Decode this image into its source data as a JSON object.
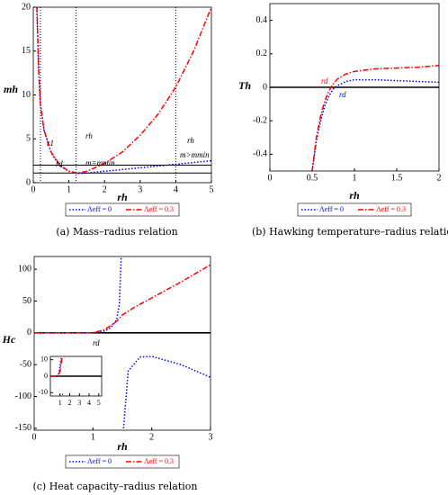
{
  "chart_data": [
    {
      "type": "line",
      "caption": "(a)   Mass–radius relation",
      "xlabel": "rh",
      "ylabel": "mh",
      "xlim": [
        0,
        5
      ],
      "ylim": [
        0,
        20
      ],
      "xticks": [
        0,
        1,
        2,
        3,
        4,
        5
      ],
      "yticks": [
        0,
        5,
        10,
        15,
        20
      ],
      "legend": "below",
      "series": [
        {
          "name": "Λeff = 0",
          "color": "#0000ff",
          "dash": "dotted",
          "x": [
            0.1,
            0.15,
            0.2,
            0.3,
            0.5,
            0.75,
            1,
            1.25,
            1.5,
            2,
            2.5,
            3,
            3.5,
            4,
            4.5,
            5
          ],
          "values": [
            20,
            13,
            9,
            6,
            3.4,
            1.9,
            1.3,
            1.05,
            1.1,
            1.3,
            1.5,
            1.7,
            1.9,
            2.1,
            2.3,
            2.5
          ]
        },
        {
          "name": "Λeff = 0.3",
          "color": "#ff0000",
          "dash": "dashdot",
          "x": [
            0.1,
            0.15,
            0.2,
            0.3,
            0.5,
            0.75,
            1,
            1.25,
            1.5,
            2,
            2.5,
            3,
            3.5,
            4,
            4.5,
            5
          ],
          "values": [
            20,
            13,
            9,
            6,
            3.5,
            2,
            1.3,
            1.1,
            1.3,
            2.2,
            3.5,
            5.4,
            7.8,
            10.9,
            15,
            20
          ]
        }
      ],
      "hlines": [
        1.1,
        2.0
      ],
      "vlines": [
        0.2,
        1.2,
        4.0
      ],
      "annotations": [
        "r1",
        "rd",
        "rh",
        "rh",
        "m=mmin",
        "m>mmin"
      ]
    },
    {
      "type": "line",
      "caption": "(b)  Hawking temperature–radius relation",
      "xlabel": "rh",
      "ylabel": "Th",
      "xlim": [
        0,
        2
      ],
      "ylim": [
        -0.5,
        0.5
      ],
      "xticks": [
        0,
        0.5,
        1,
        1.5,
        2
      ],
      "yticks": [
        -0.4,
        -0.2,
        0,
        0.2,
        0.4
      ],
      "legend": "below",
      "series": [
        {
          "name": "Λeff = 0",
          "color": "#0000ff",
          "dash": "dotted",
          "x": [
            0.5,
            0.55,
            0.6,
            0.65,
            0.7,
            0.75,
            0.8,
            0.9,
            1,
            1.25,
            1.5,
            1.75,
            2
          ],
          "values": [
            -0.5,
            -0.32,
            -0.2,
            -0.11,
            -0.05,
            -0.01,
            0.01,
            0.035,
            0.045,
            0.045,
            0.04,
            0.035,
            0.03
          ]
        },
        {
          "name": "Λeff = 0.3",
          "color": "#ff0000",
          "dash": "dashdot",
          "x": [
            0.5,
            0.55,
            0.6,
            0.65,
            0.7,
            0.75,
            0.8,
            0.9,
            1,
            1.25,
            1.5,
            1.75,
            2
          ],
          "values": [
            -0.5,
            -0.3,
            -0.17,
            -0.08,
            -0.02,
            0.02,
            0.05,
            0.08,
            0.095,
            0.11,
            0.115,
            0.12,
            0.13
          ]
        }
      ],
      "hlines": [
        0
      ],
      "vlines": [],
      "annotations": [
        "rd",
        "rd"
      ]
    },
    {
      "type": "line",
      "caption": "(c)  Heat capacity–radius relation",
      "xlabel": "rh",
      "ylabel": "Hc",
      "xlim": [
        0,
        3
      ],
      "ylim": [
        -153,
        120
      ],
      "xticks": [
        0,
        1,
        2,
        3
      ],
      "yticks": [
        -150,
        -100,
        -50,
        0,
        50,
        100
      ],
      "legend": "below",
      "series": [
        {
          "name": "Λeff = 0",
          "color": "#0000ff",
          "dash": "dotted",
          "x": [
            0,
            1,
            1.2,
            1.3,
            1.4,
            1.45,
            1.48,
            1.5,
            1.52,
            1.6,
            1.8,
            2,
            2.5,
            3
          ],
          "values": [
            0,
            0,
            3,
            8,
            20,
            45,
            120,
            null,
            -150,
            -60,
            -38,
            -37,
            -50,
            -70
          ]
        },
        {
          "name": "Λeff = 0.3",
          "color": "#ff0000",
          "dash": "dashdot",
          "x": [
            0,
            1,
            1.2,
            1.4,
            1.5,
            1.7,
            2,
            2.5,
            3
          ],
          "values": [
            0,
            0,
            5,
            18,
            28,
            40,
            55,
            80,
            107
          ]
        }
      ],
      "hlines": [
        0
      ],
      "vlines": [],
      "annotations": [
        "rd"
      ]
    },
    {
      "type": "line",
      "xlim": [
        0,
        5.3
      ],
      "ylim": [
        -12,
        12
      ],
      "xticks": [
        1,
        2,
        3,
        4,
        5
      ],
      "yticks": [
        -10,
        0,
        10
      ],
      "series": [
        {
          "name": "Λeff = 0",
          "color": "#0000ff",
          "dash": "dotted",
          "x": [
            0,
            0.8,
            1.0,
            1.1,
            1.15,
            1.2,
            1.3
          ],
          "values": [
            0,
            0,
            6,
            11,
            null,
            -11,
            -11
          ]
        },
        {
          "name": "Λeff = 0.3",
          "color": "#ff0000",
          "dash": "dashdot",
          "x": [
            0,
            0.8,
            1.0,
            1.2
          ],
          "values": [
            0,
            0,
            3,
            11
          ]
        }
      ],
      "hlines": [
        0
      ],
      "vlines": []
    }
  ]
}
